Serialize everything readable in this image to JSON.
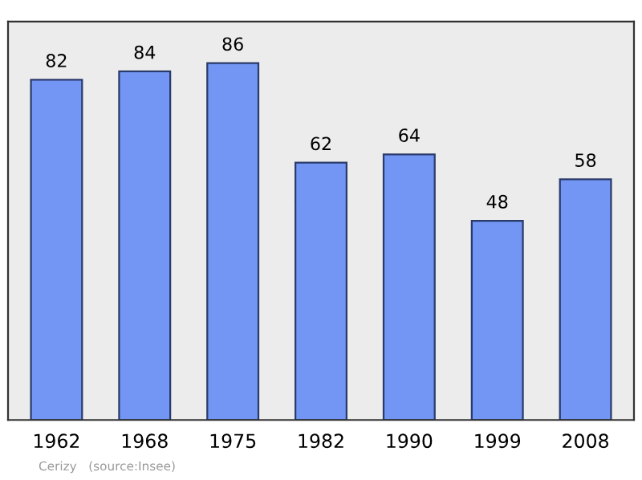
{
  "chart_data": {
    "type": "bar",
    "categories": [
      "1962",
      "1968",
      "1975",
      "1982",
      "1990",
      "1999",
      "2008"
    ],
    "values": [
      82,
      84,
      86,
      62,
      64,
      48,
      58
    ],
    "color": "#7396f5",
    "data_labels": true,
    "ylim": [
      0,
      96
    ],
    "tick_labels": "x",
    "grid": false,
    "annotations": [
      "Cerizy   (source:Insee)"
    ]
  }
}
